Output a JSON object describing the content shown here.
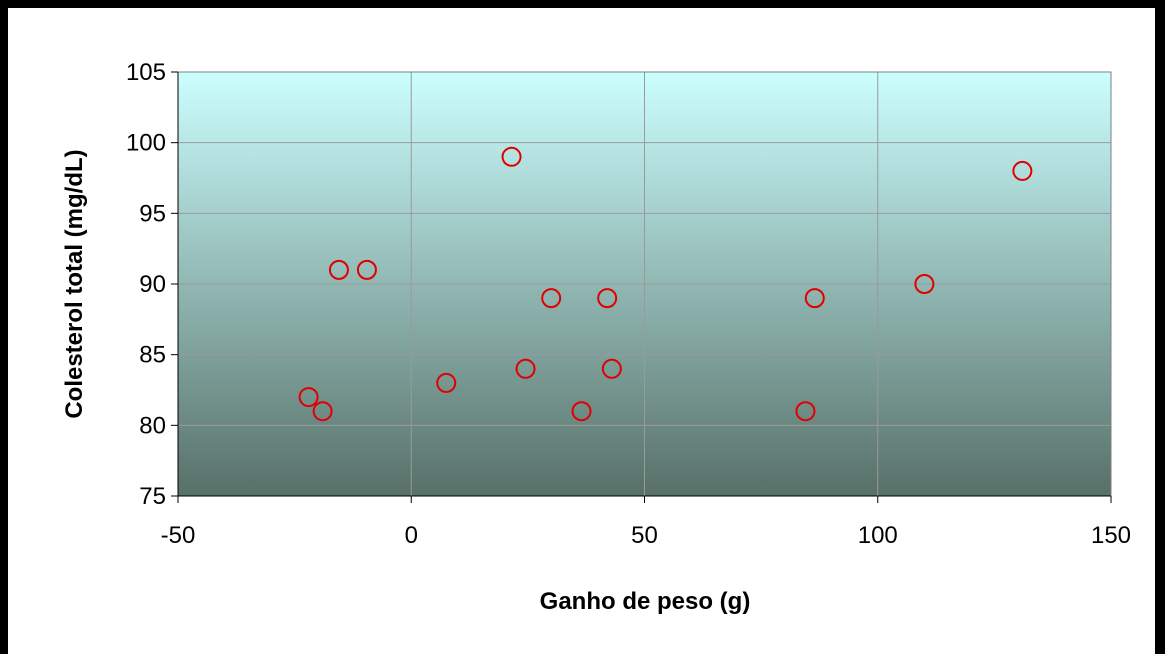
{
  "chart_data": {
    "type": "scatter",
    "title": "",
    "xlabel": "Ganho de peso (g)",
    "ylabel": "Colesterol total (mg/dL)",
    "xlim": [
      -50,
      150
    ],
    "ylim": [
      75,
      105
    ],
    "x_ticks": [
      -50,
      0,
      50,
      100,
      150
    ],
    "y_ticks": [
      75,
      80,
      85,
      90,
      95,
      100,
      105
    ],
    "grid": true,
    "legend": "none",
    "series": [
      {
        "points": [
          {
            "x": -22,
            "y": 82
          },
          {
            "x": -19,
            "y": 81
          },
          {
            "x": -15.5,
            "y": 91
          },
          {
            "x": -9.5,
            "y": 91
          },
          {
            "x": 7.5,
            "y": 83
          },
          {
            "x": 21.5,
            "y": 99
          },
          {
            "x": 24.5,
            "y": 84
          },
          {
            "x": 30,
            "y": 89
          },
          {
            "x": 36.5,
            "y": 81
          },
          {
            "x": 42,
            "y": 89
          },
          {
            "x": 43,
            "y": 84
          },
          {
            "x": 84.5,
            "y": 81
          },
          {
            "x": 86.5,
            "y": 89
          },
          {
            "x": 110,
            "y": 90
          },
          {
            "x": 131,
            "y": 98
          }
        ]
      }
    ],
    "colors": {
      "marker": "#e00000",
      "plot_bg_top": "#ccffff",
      "plot_bg_bottom": "#577068",
      "grid": "#9a9a9a",
      "axis": "#7f7f7f"
    }
  }
}
